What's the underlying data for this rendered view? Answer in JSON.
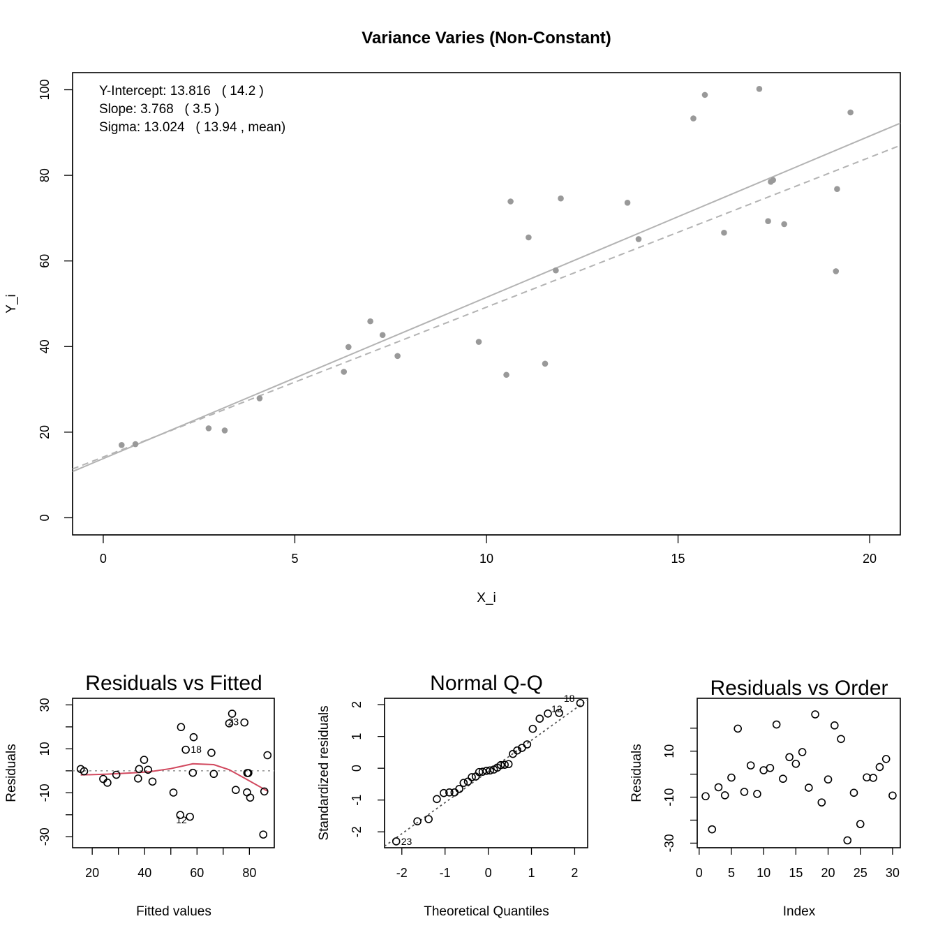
{
  "main_plot": {
    "title": "Variance Varies (Non-Constant)",
    "xlabel": "X_i",
    "ylabel": "Y_i",
    "annotations": [
      "Y-Intercept: 13.816   ( 14.2 )",
      "Slope: 3.768   ( 3.5 )",
      "Sigma: 13.024   ( 13.94 , mean)"
    ]
  },
  "chart_data": [
    {
      "type": "scatter",
      "title": "Variance Varies (Non-Constant)",
      "xlabel": "X_i",
      "ylabel": "Y_i",
      "xlim": [
        -0.8,
        20.8
      ],
      "ylim": [
        -4,
        104
      ],
      "xticks": [
        0,
        5,
        10,
        15,
        20
      ],
      "yticks": [
        0,
        20,
        40,
        60,
        80,
        100
      ],
      "point_color": "#999999",
      "line_color": "#b3b3b3",
      "x": [
        0.48,
        0.84,
        2.75,
        3.17,
        4.08,
        6.28,
        6.4,
        6.97,
        7.29,
        7.68,
        9.8,
        10.52,
        10.63,
        11.1,
        11.53,
        11.81,
        11.94,
        13.68,
        13.97,
        15.4,
        15.7,
        16.2,
        17.12,
        17.35,
        17.42,
        17.48,
        17.77,
        19.12,
        19.15,
        19.5
      ],
      "y": [
        17.0,
        17.2,
        20.9,
        20.4,
        27.9,
        34.1,
        39.9,
        45.9,
        42.7,
        37.8,
        41.1,
        33.4,
        73.9,
        65.5,
        36.0,
        57.8,
        74.6,
        73.6,
        65.1,
        93.3,
        98.8,
        66.6,
        100.2,
        69.3,
        78.5,
        78.9,
        68.6,
        57.6,
        76.8,
        94.7
      ],
      "fitted_line": {
        "intercept": 13.816,
        "slope": 3.768,
        "style": "solid"
      },
      "true_line": {
        "intercept": 14.2,
        "slope": 3.5,
        "style": "dashed"
      }
    },
    {
      "type": "scatter",
      "title": "Residuals vs Fitted",
      "xlabel": "Fitted values",
      "ylabel": "Residuals",
      "xlim": [
        12.5,
        89.5
      ],
      "ylim": [
        -35,
        33
      ],
      "xticks": [
        20,
        40,
        60,
        80
      ],
      "yticks": [
        -30,
        -10,
        10,
        30
      ],
      "x": [
        15.6,
        16.9,
        24.2,
        25.8,
        29.2,
        37.5,
        37.9,
        39.8,
        41.3,
        43.0,
        51.0,
        53.6,
        53.9,
        55.7,
        57.3,
        58.4,
        58.7,
        65.5,
        66.4,
        72.3,
        73.4,
        74.8,
        78.1,
        79.1,
        79.2,
        79.6,
        80.3,
        85.3,
        85.7,
        86.9
      ],
      "y": [
        0.8,
        -0.2,
        -3.7,
        -5.4,
        -1.8,
        -3.5,
        0.8,
        5.0,
        0.5,
        -4.9,
        -9.9,
        -20.1,
        19.9,
        9.6,
        -20.9,
        -0.9,
        15.3,
        8.2,
        -1.4,
        21.6,
        26.0,
        -8.7,
        22.0,
        -9.8,
        -1.0,
        -1.0,
        -12.2,
        -29.0,
        -9.4,
        7.1
      ],
      "smoother": {
        "color": "#d1485e",
        "x": [
          15.6,
          25.8,
          37.5,
          42.0,
          50.0,
          58.4,
          66.4,
          72.3,
          78.1,
          86.9
        ],
        "y": [
          -1.9,
          -1.5,
          -0.8,
          -0.4,
          1.0,
          3.2,
          2.8,
          0.5,
          -3.3,
          -9.2
        ]
      },
      "reference_line": 0,
      "labeled_points": [
        {
          "index": 17,
          "text": "18"
        },
        {
          "index": 11,
          "text": "12"
        },
        {
          "index": 22,
          "text": "23"
        }
      ]
    },
    {
      "type": "scatter",
      "title": "Normal Q-Q",
      "xlabel": "Theoretical Quantiles",
      "ylabel": "Standardized residuals",
      "xlim": [
        -2.4,
        2.3
      ],
      "ylim": [
        -2.5,
        2.2
      ],
      "xticks": [
        -2,
        -1,
        0,
        1,
        2
      ],
      "yticks": [
        -2,
        -1,
        0,
        1,
        2
      ],
      "x": [
        -2.13,
        -1.64,
        -1.38,
        -1.19,
        -1.03,
        -0.9,
        -0.78,
        -0.67,
        -0.57,
        -0.47,
        -0.38,
        -0.29,
        -0.21,
        -0.13,
        -0.04,
        0.04,
        0.13,
        0.21,
        0.29,
        0.38,
        0.47,
        0.57,
        0.67,
        0.78,
        0.9,
        1.03,
        1.19,
        1.38,
        1.64,
        2.13
      ],
      "y": [
        -2.3,
        -1.67,
        -1.6,
        -0.97,
        -0.78,
        -0.76,
        -0.76,
        -0.65,
        -0.46,
        -0.42,
        -0.28,
        -0.26,
        -0.12,
        -0.11,
        -0.08,
        -0.07,
        -0.04,
        0.02,
        0.1,
        0.11,
        0.13,
        0.45,
        0.56,
        0.64,
        0.75,
        1.24,
        1.56,
        1.72,
        1.74,
        2.05
      ],
      "reference_line": {
        "intercept": -0.1,
        "slope": 0.98,
        "style": "dotted"
      },
      "labeled_points": [
        {
          "index": 29,
          "text": "18"
        },
        {
          "index": 27,
          "text": "12"
        },
        {
          "index": 0,
          "text": "23"
        }
      ]
    },
    {
      "type": "scatter",
      "title": "Residuals vs Order",
      "xlabel": "Index",
      "ylabel": "Residuals",
      "xlim": [
        -0.3,
        31.2
      ],
      "ylim": [
        -32,
        33
      ],
      "xticks": [
        0,
        5,
        10,
        15,
        20,
        25,
        30
      ],
      "yticks": [
        -30,
        -10,
        10
      ],
      "x": [
        1,
        2,
        3,
        4,
        5,
        6,
        7,
        8,
        9,
        10,
        11,
        12,
        13,
        14,
        15,
        16,
        17,
        18,
        19,
        20,
        21,
        22,
        23,
        24,
        25,
        26,
        27,
        28,
        29,
        30
      ],
      "y": [
        -9.6,
        -24.0,
        -5.7,
        -9.2,
        -1.5,
        19.8,
        -7.7,
        3.8,
        -8.6,
        1.7,
        2.7,
        21.6,
        -2.0,
        7.4,
        4.5,
        9.6,
        -5.9,
        26.0,
        -12.3,
        -2.3,
        21.2,
        15.3,
        -28.8,
        -8.1,
        -21.7,
        -1.4,
        -1.6,
        3.1,
        6.6,
        -9.3
      ]
    }
  ]
}
